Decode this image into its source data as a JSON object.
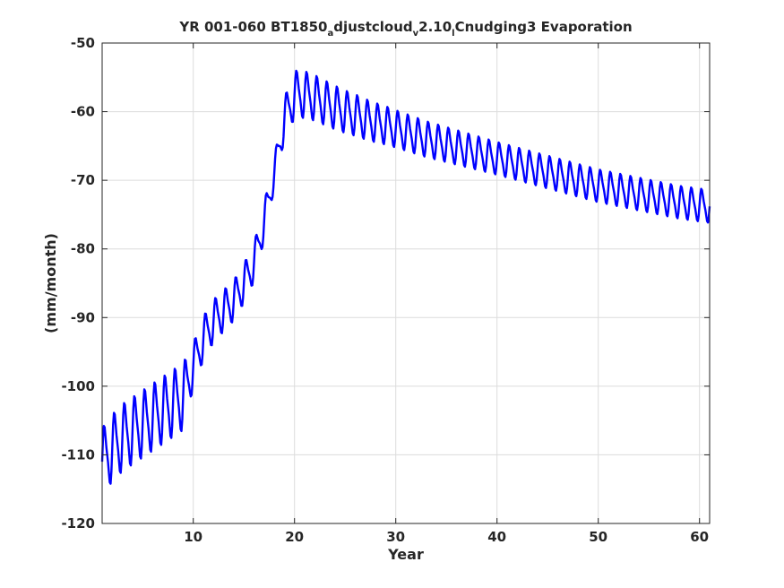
{
  "chart_data": {
    "type": "line",
    "title": {
      "parts": [
        {
          "text": "YR 001-060 BT1850",
          "sub": false
        },
        {
          "text": "a",
          "sub": true
        },
        {
          "text": "djustcloud",
          "sub": false
        },
        {
          "text": "v",
          "sub": true
        },
        {
          "text": "2.10",
          "sub": false
        },
        {
          "text": "l",
          "sub": true
        },
        {
          "text": "Cnudging3 Evaporation",
          "sub": false
        }
      ]
    },
    "xlabel": "Year",
    "ylabel": "(mm/month)",
    "xlim": [
      1,
      61
    ],
    "ylim": [
      -120,
      -50
    ],
    "xticks": [
      10,
      20,
      30,
      40,
      50,
      60
    ],
    "yticks": [
      -120,
      -110,
      -100,
      -90,
      -80,
      -70,
      -60,
      -50
    ],
    "grid": true,
    "line_color": "#0000ff",
    "series": [
      {
        "seasonal_cycle": true,
        "annual_mean": {
          "x": [
            1,
            2,
            3,
            4,
            5,
            6,
            7,
            8,
            9,
            10,
            11,
            12,
            13,
            14,
            15,
            16,
            17,
            18,
            19,
            20,
            21,
            22,
            23,
            24,
            25,
            26,
            27,
            28,
            29,
            30,
            31,
            32,
            33,
            34,
            35,
            36,
            37,
            38,
            39,
            40,
            41,
            42,
            43,
            44,
            45,
            46,
            47,
            48,
            49,
            50,
            51,
            52,
            53,
            54,
            55,
            56,
            57,
            58,
            59,
            60,
            61
          ],
          "y": [
            -111,
            -109,
            -107.5,
            -106.5,
            -105.5,
            -104.5,
            -103.5,
            -102.5,
            -101.5,
            -97,
            -93,
            -90.5,
            -89,
            -87.5,
            -85,
            -82,
            -76,
            -69,
            -61,
            -57.5,
            -57.5,
            -58,
            -58.7,
            -59.4,
            -60,
            -60.5,
            -61.1,
            -61.6,
            -62,
            -62.5,
            -63,
            -63.5,
            -64,
            -64.4,
            -64.8,
            -65.2,
            -65.6,
            -66,
            -66.4,
            -66.8,
            -67.2,
            -67.6,
            -68,
            -68.4,
            -68.8,
            -69.2,
            -69.6,
            -70,
            -70.4,
            -70.8,
            -71.1,
            -71.4,
            -71.7,
            -72,
            -72.3,
            -72.6,
            -72.9,
            -73.2,
            -73.4,
            -73.6,
            -73.8
          ]
        },
        "seasonal_amplitude": {
          "x": [
            1,
            9,
            10,
            17,
            18,
            19,
            20,
            30,
            40,
            61
          ],
          "y": [
            4.5,
            4.5,
            3,
            2.5,
            2,
            2.8,
            3.2,
            2.5,
            2.2,
            2.2
          ]
        }
      }
    ]
  }
}
